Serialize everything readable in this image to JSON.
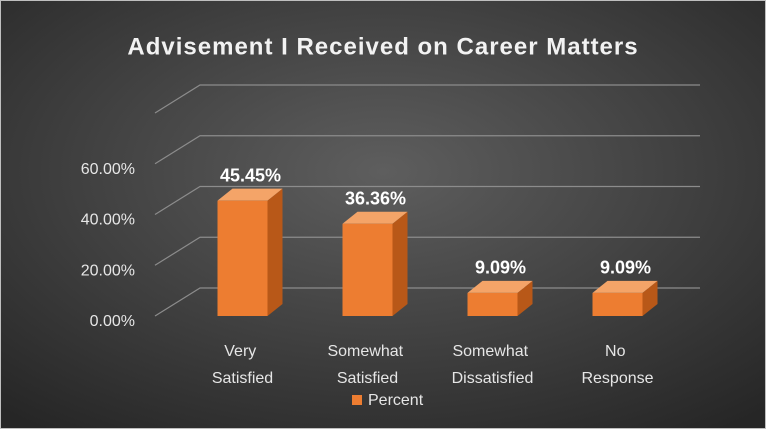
{
  "chart_data": {
    "type": "bar3d",
    "title": "Advisement I Received on Career Matters",
    "categories": [
      "Very Satisfied",
      "Somewhat Satisfied",
      "Somewhat Dissatisfied",
      "No Response"
    ],
    "series": [
      {
        "name": "Percent",
        "color": "#ed7d31",
        "values": [
          45.45,
          36.36,
          9.09,
          9.09
        ],
        "value_labels": [
          "45.45%",
          "36.36%",
          "9.09%",
          "9.09%"
        ]
      }
    ],
    "ylim": [
      0,
      80
    ],
    "yticks": [
      {
        "value": 0,
        "label": "0.00%"
      },
      {
        "value": 20,
        "label": "20.00%"
      },
      {
        "value": 40,
        "label": "40.00%"
      },
      {
        "value": 60,
        "label": "60.00%"
      }
    ],
    "grid": true,
    "legend": "bottom"
  }
}
